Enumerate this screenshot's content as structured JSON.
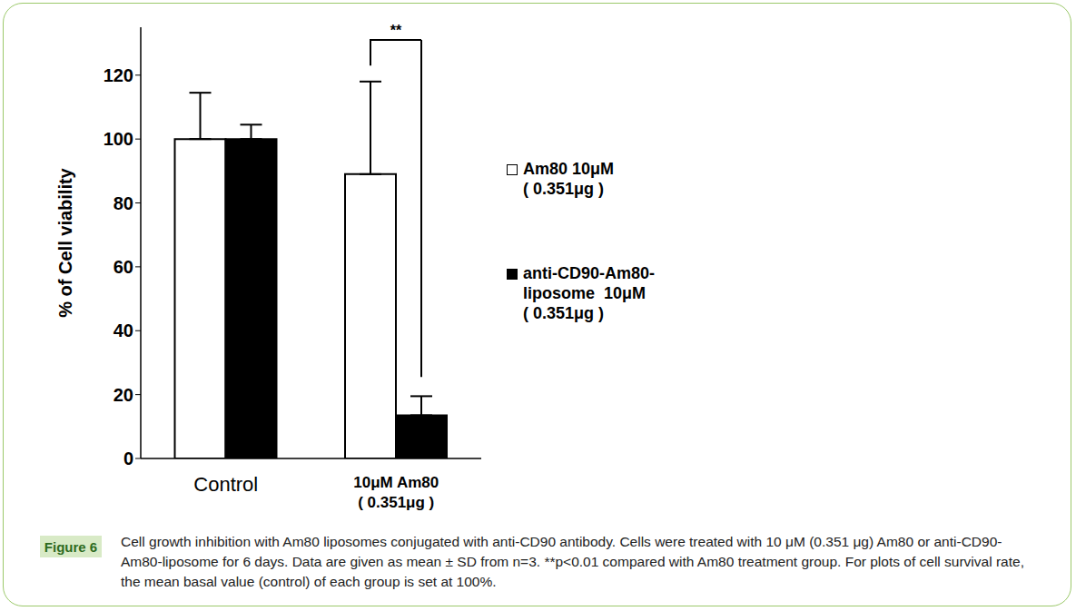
{
  "chart_data": {
    "type": "bar",
    "y_label": "% of Cell viability",
    "categories": [
      "Control",
      "10μM Am80\n( 0.351μg )"
    ],
    "series": [
      {
        "name": "Am80 10μM\n( 0.351μg )",
        "color": "#ffffff",
        "values": [
          100,
          89
        ],
        "errors": [
          14.5,
          29
        ]
      },
      {
        "name": "anti-CD90-Am80-\nliposome  10μM\n( 0.351μg )",
        "color": "#000000",
        "values": [
          100,
          13.5
        ],
        "errors": [
          4.5,
          6
        ]
      }
    ],
    "ylim": [
      0,
      135
    ],
    "yticks": [
      0,
      20,
      40,
      60,
      80,
      100,
      120
    ],
    "grid": false,
    "legend": "right",
    "annotations": [
      {
        "text": "**",
        "category": "10μM Am80\n( 0.351μg )",
        "y": 131,
        "from": 123,
        "to": 25.5
      }
    ],
    "figure_label": "Figure 6",
    "caption": "Cell growth inhibition with Am80 liposomes conjugated with anti-CD90 antibody. Cells were treated with 10 μM (0.351 μg) Am80 or anti-CD90-Am80-liposome for 6 days. Data are given as mean ± SD from n=3. **p<0.01 compared with Am80 treatment group. For plots of cell survival rate, the mean basal value (control) of each group is set at 100%."
  }
}
